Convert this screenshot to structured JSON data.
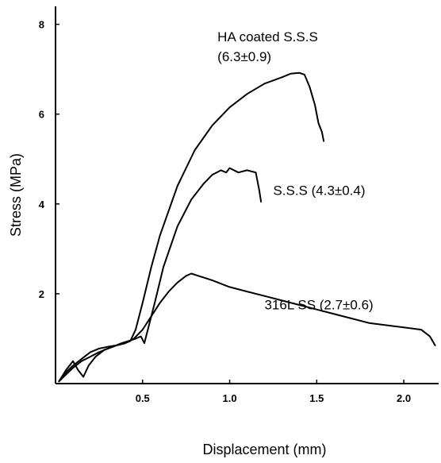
{
  "chart_data": {
    "type": "line",
    "xlabel": "Displacement (mm)",
    "ylabel": "Stress (MPa)",
    "xlim": [
      0,
      2.2
    ],
    "ylim": [
      0,
      8.4
    ],
    "x_ticks": [
      {
        "value": 0.5,
        "label": "0.5"
      },
      {
        "value": 1.0,
        "label": "1.0"
      },
      {
        "value": 1.5,
        "label": "1.5"
      },
      {
        "value": 2.0,
        "label": "2.0"
      }
    ],
    "y_ticks": [
      {
        "value": 2,
        "label": "2"
      },
      {
        "value": 4,
        "label": "4"
      },
      {
        "value": 6,
        "label": "6"
      },
      {
        "value": 8,
        "label": "8"
      }
    ],
    "grid": false,
    "series": [
      {
        "key": "ha-coated",
        "annotation": [
          "HA coated S.S.S",
          "(6.3±0.9)"
        ],
        "annotation_anchor": {
          "x": 0.93,
          "y": 7.62
        },
        "points": [
          [
            0.02,
            0.05
          ],
          [
            0.06,
            0.25
          ],
          [
            0.1,
            0.4
          ],
          [
            0.15,
            0.55
          ],
          [
            0.2,
            0.7
          ],
          [
            0.25,
            0.78
          ],
          [
            0.3,
            0.82
          ],
          [
            0.35,
            0.85
          ],
          [
            0.4,
            0.9
          ],
          [
            0.43,
            0.95
          ],
          [
            0.46,
            1.2
          ],
          [
            0.5,
            1.8
          ],
          [
            0.55,
            2.6
          ],
          [
            0.6,
            3.3
          ],
          [
            0.7,
            4.4
          ],
          [
            0.8,
            5.2
          ],
          [
            0.9,
            5.75
          ],
          [
            1.0,
            6.15
          ],
          [
            1.1,
            6.45
          ],
          [
            1.2,
            6.68
          ],
          [
            1.3,
            6.82
          ],
          [
            1.35,
            6.9
          ],
          [
            1.4,
            6.92
          ],
          [
            1.43,
            6.88
          ],
          [
            1.46,
            6.6
          ],
          [
            1.49,
            6.2
          ],
          [
            1.51,
            5.8
          ],
          [
            1.53,
            5.6
          ],
          [
            1.54,
            5.4
          ]
        ]
      },
      {
        "key": "sss",
        "annotation": [
          "S.S.S (4.3±0.4)"
        ],
        "annotation_anchor": {
          "x": 1.25,
          "y": 4.2
        },
        "points": [
          [
            0.02,
            0.05
          ],
          [
            0.06,
            0.3
          ],
          [
            0.1,
            0.5
          ],
          [
            0.13,
            0.3
          ],
          [
            0.16,
            0.15
          ],
          [
            0.19,
            0.4
          ],
          [
            0.23,
            0.6
          ],
          [
            0.28,
            0.75
          ],
          [
            0.33,
            0.82
          ],
          [
            0.38,
            0.9
          ],
          [
            0.42,
            0.95
          ],
          [
            0.46,
            1.0
          ],
          [
            0.49,
            1.05
          ],
          [
            0.51,
            0.9
          ],
          [
            0.53,
            1.2
          ],
          [
            0.57,
            1.8
          ],
          [
            0.62,
            2.6
          ],
          [
            0.7,
            3.5
          ],
          [
            0.78,
            4.1
          ],
          [
            0.85,
            4.45
          ],
          [
            0.9,
            4.65
          ],
          [
            0.95,
            4.75
          ],
          [
            0.98,
            4.7
          ],
          [
            1.0,
            4.8
          ],
          [
            1.05,
            4.7
          ],
          [
            1.1,
            4.75
          ],
          [
            1.15,
            4.7
          ],
          [
            1.17,
            4.3
          ],
          [
            1.18,
            4.05
          ]
        ]
      },
      {
        "key": "316l",
        "annotation": [
          "316L SS (2.7±0.6)"
        ],
        "annotation_anchor": {
          "x": 1.2,
          "y": 1.65
        },
        "points": [
          [
            0.02,
            0.05
          ],
          [
            0.06,
            0.2
          ],
          [
            0.1,
            0.35
          ],
          [
            0.15,
            0.5
          ],
          [
            0.2,
            0.6
          ],
          [
            0.25,
            0.7
          ],
          [
            0.3,
            0.78
          ],
          [
            0.35,
            0.85
          ],
          [
            0.4,
            0.9
          ],
          [
            0.45,
            1.0
          ],
          [
            0.5,
            1.2
          ],
          [
            0.55,
            1.5
          ],
          [
            0.6,
            1.8
          ],
          [
            0.65,
            2.05
          ],
          [
            0.7,
            2.25
          ],
          [
            0.75,
            2.4
          ],
          [
            0.78,
            2.45
          ],
          [
            0.82,
            2.4
          ],
          [
            0.9,
            2.3
          ],
          [
            1.0,
            2.15
          ],
          [
            1.1,
            2.05
          ],
          [
            1.2,
            1.95
          ],
          [
            1.3,
            1.85
          ],
          [
            1.4,
            1.75
          ],
          [
            1.5,
            1.65
          ],
          [
            1.6,
            1.55
          ],
          [
            1.7,
            1.45
          ],
          [
            1.8,
            1.35
          ],
          [
            1.9,
            1.3
          ],
          [
            2.0,
            1.25
          ],
          [
            2.1,
            1.2
          ],
          [
            2.15,
            1.05
          ],
          [
            2.18,
            0.85
          ]
        ]
      }
    ]
  }
}
